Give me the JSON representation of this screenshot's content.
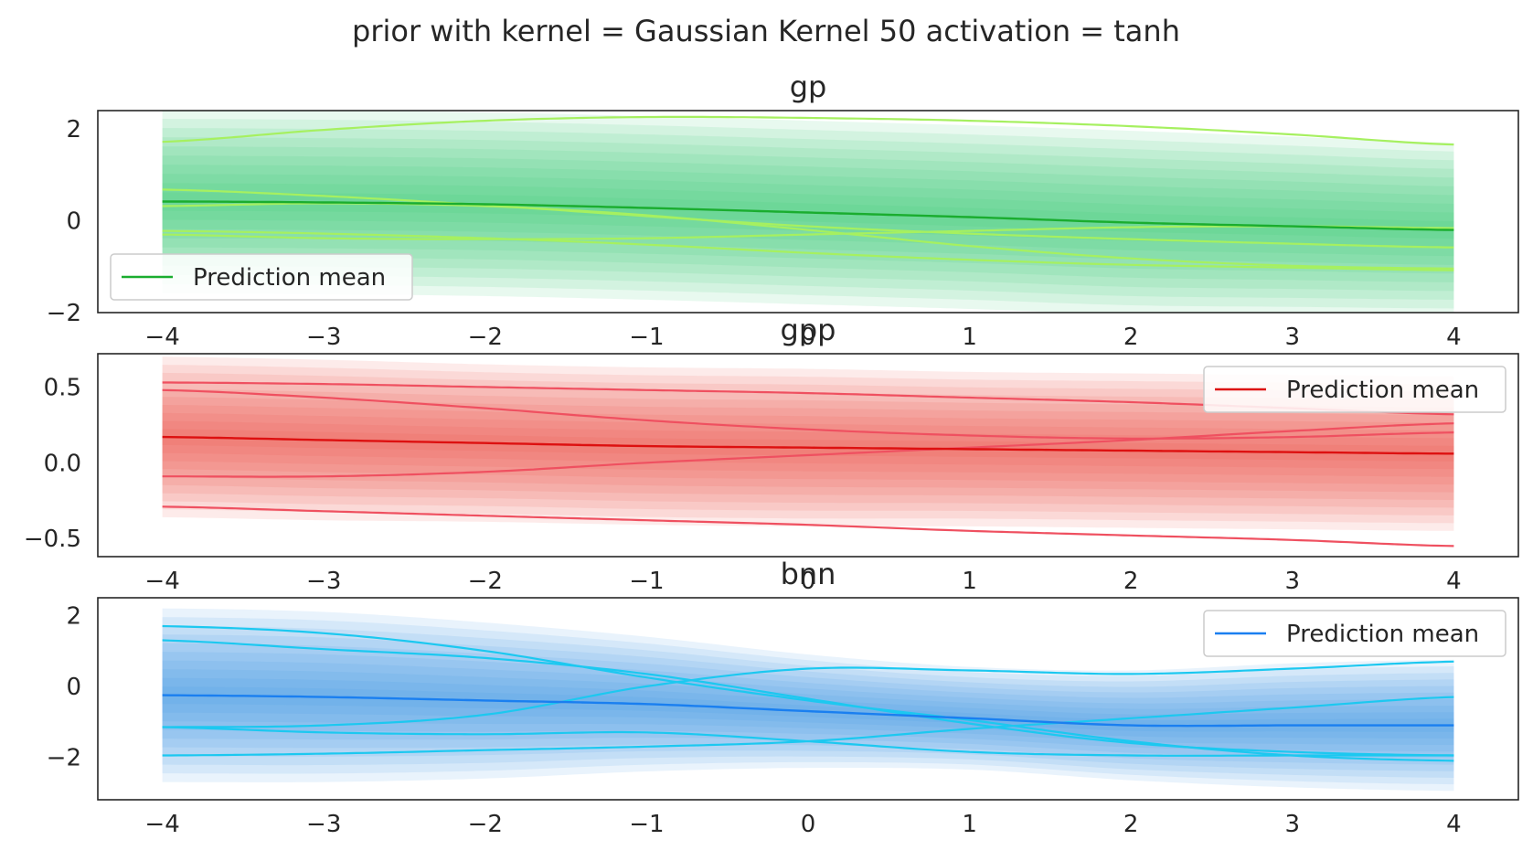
{
  "figure": {
    "suptitle": "prior with kernel = Gaussian Kernel 50 activation = tanh"
  },
  "chart_data": [
    {
      "type": "line",
      "title": "gp",
      "xlim": [
        -4.4,
        4.4
      ],
      "ylim": [
        -2.0,
        2.4
      ],
      "xticks": [
        -4,
        -3,
        -2,
        -1,
        0,
        1,
        2,
        3,
        4
      ],
      "xtick_labels": [
        "−4",
        "−3",
        "−2",
        "−1",
        "0",
        "1",
        "2",
        "3",
        "4"
      ],
      "yticks": [
        2,
        0,
        -2
      ],
      "ytick_labels": [
        "2",
        "0",
        "−2"
      ],
      "band_color": "#2ecc71",
      "mean_color": "#1aad2f",
      "sample_color": "#a6f060",
      "legend": {
        "label": "Prediction mean",
        "position": "lower-left"
      },
      "x": [
        -4,
        -3,
        -2,
        -1,
        0,
        1,
        2,
        3,
        4
      ],
      "mean": [
        0.42,
        0.4,
        0.36,
        0.28,
        0.18,
        0.08,
        -0.04,
        -0.12,
        -0.2
      ],
      "band_halfwidth": [
        2.0,
        2.0,
        2.0,
        2.0,
        2.0,
        2.0,
        2.0,
        1.95,
        1.9
      ],
      "samples": [
        [
          1.72,
          1.98,
          2.18,
          2.26,
          2.24,
          2.18,
          2.06,
          1.88,
          1.66
        ],
        [
          0.68,
          0.54,
          0.34,
          0.1,
          -0.12,
          -0.28,
          -0.4,
          -0.5,
          -0.58
        ],
        [
          0.32,
          0.38,
          0.32,
          0.12,
          -0.2,
          -0.55,
          -0.82,
          -0.98,
          -1.04
        ],
        [
          -0.22,
          -0.28,
          -0.38,
          -0.52,
          -0.7,
          -0.85,
          -0.96,
          -1.02,
          -1.08
        ],
        [
          -0.3,
          -0.38,
          -0.4,
          -0.38,
          -0.3,
          -0.22,
          -0.14,
          -0.12,
          -0.16
        ]
      ]
    },
    {
      "type": "line",
      "title": "gpp",
      "xlim": [
        -4.4,
        4.4
      ],
      "ylim": [
        -0.62,
        0.72
      ],
      "xticks": [
        -4,
        -3,
        -2,
        -1,
        0,
        1,
        2,
        3,
        4
      ],
      "xtick_labels": [
        "−4",
        "−3",
        "−2",
        "−1",
        "0",
        "1",
        "2",
        "3",
        "4"
      ],
      "yticks": [
        0.5,
        0.0,
        -0.5
      ],
      "ytick_labels": [
        "0.5",
        "0.0",
        "−0.5"
      ],
      "band_color": "#ee4a3c",
      "mean_color": "#dd1010",
      "sample_color": "#ef5060",
      "legend": {
        "label": "Prediction mean",
        "position": "upper-right"
      },
      "x": [
        -4,
        -3,
        -2,
        -1,
        0,
        1,
        2,
        3,
        4
      ],
      "mean": [
        0.17,
        0.15,
        0.13,
        0.11,
        0.1,
        0.09,
        0.08,
        0.07,
        0.06
      ],
      "band_halfwidth": [
        0.53,
        0.53,
        0.52,
        0.52,
        0.52,
        0.51,
        0.51,
        0.51,
        0.51
      ],
      "samples": [
        [
          0.53,
          0.52,
          0.5,
          0.48,
          0.46,
          0.43,
          0.4,
          0.36,
          0.32
        ],
        [
          0.48,
          0.43,
          0.36,
          0.28,
          0.22,
          0.18,
          0.16,
          0.17,
          0.2
        ],
        [
          -0.09,
          -0.09,
          -0.06,
          0.0,
          0.05,
          0.1,
          0.15,
          0.21,
          0.26
        ],
        [
          -0.29,
          -0.32,
          -0.35,
          -0.38,
          -0.41,
          -0.45,
          -0.48,
          -0.51,
          -0.55
        ]
      ]
    },
    {
      "type": "line",
      "title": "bnn",
      "xlim": [
        -4.4,
        4.4
      ],
      "ylim": [
        -3.2,
        2.5
      ],
      "xticks": [
        -4,
        -3,
        -2,
        -1,
        0,
        1,
        2,
        3,
        4
      ],
      "xtick_labels": [
        "−4",
        "−3",
        "−2",
        "−1",
        "0",
        "1",
        "2",
        "3",
        "4"
      ],
      "yticks": [
        2,
        0,
        -2
      ],
      "ytick_labels": [
        "2",
        "0",
        "−2"
      ],
      "band_color": "#3a96e0",
      "mean_color": "#1a7ff0",
      "sample_color": "#1cc8f0",
      "legend": {
        "label": "Prediction mean",
        "position": "upper-right"
      },
      "x": [
        -4,
        -3,
        -2,
        -1,
        0,
        1,
        2,
        3,
        4
      ],
      "mean": [
        -0.25,
        -0.3,
        -0.4,
        -0.5,
        -0.7,
        -0.9,
        -1.1,
        -1.1,
        -1.1
      ],
      "band_halfwidth": [
        2.45,
        2.4,
        2.2,
        1.9,
        1.6,
        1.45,
        1.55,
        1.75,
        1.85
      ],
      "samples": [
        [
          1.7,
          1.5,
          1.0,
          0.25,
          -0.4,
          -0.95,
          -1.55,
          -1.95,
          -2.1
        ],
        [
          1.3,
          1.05,
          0.8,
          0.35,
          -0.35,
          -1.05,
          -1.6,
          -1.85,
          -1.95
        ],
        [
          -1.15,
          -1.1,
          -0.8,
          0.0,
          0.5,
          0.45,
          0.35,
          0.5,
          0.7
        ],
        [
          -1.15,
          -1.3,
          -1.35,
          -1.3,
          -1.55,
          -1.85,
          -1.95,
          -1.95,
          -1.95
        ],
        [
          -1.95,
          -1.9,
          -1.8,
          -1.7,
          -1.55,
          -1.2,
          -0.9,
          -0.6,
          -0.3
        ]
      ]
    }
  ]
}
